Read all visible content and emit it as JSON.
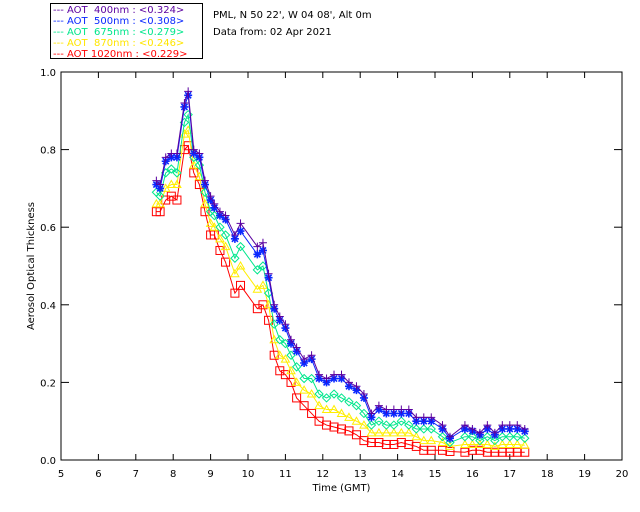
{
  "chart_data": {
    "type": "scatter",
    "title": "",
    "xlabel": "Time (GMT)",
    "ylabel": "Aerosol Optical Thickness",
    "xlim": [
      5,
      20
    ],
    "ylim": [
      0,
      1.0
    ],
    "xticks": [
      "5",
      "6",
      "7",
      "8",
      "9",
      "10",
      "11",
      "12",
      "13",
      "14",
      "15",
      "16",
      "17",
      "18",
      "19",
      "20"
    ],
    "yticks": [
      "0.0",
      "0.2",
      "0.4",
      "0.6",
      "0.8",
      "1.0"
    ],
    "legend_placement": "top-left outside",
    "x": [
      7.55,
      7.65,
      7.8,
      7.95,
      8.1,
      8.3,
      8.4,
      8.55,
      8.7,
      8.85,
      9.0,
      9.1,
      9.25,
      9.4,
      9.65,
      9.8,
      10.25,
      10.4,
      10.55,
      10.7,
      10.85,
      11.0,
      11.15,
      11.3,
      11.5,
      11.7,
      11.9,
      12.1,
      12.3,
      12.5,
      12.7,
      12.9,
      13.1,
      13.3,
      13.5,
      13.7,
      13.9,
      14.1,
      14.3,
      14.5,
      14.7,
      14.9,
      15.2,
      15.4,
      15.8,
      16.0,
      16.2,
      16.4,
      16.6,
      16.8,
      17.0,
      17.2,
      17.4
    ],
    "series": [
      {
        "name": "AOT  400nm",
        "mean": "<0.324>",
        "color": "#5a00a0",
        "marker": "plus",
        "values": [
          0.72,
          0.71,
          0.78,
          0.79,
          0.79,
          0.92,
          0.95,
          0.8,
          0.79,
          0.72,
          0.68,
          0.66,
          0.64,
          0.63,
          0.58,
          0.61,
          0.55,
          0.56,
          0.48,
          0.4,
          0.37,
          0.35,
          0.31,
          0.29,
          0.26,
          0.27,
          0.22,
          0.21,
          0.22,
          0.22,
          0.2,
          0.19,
          0.17,
          0.12,
          0.14,
          0.13,
          0.13,
          0.13,
          0.13,
          0.11,
          0.11,
          0.11,
          0.09,
          0.06,
          0.09,
          0.08,
          0.07,
          0.09,
          0.07,
          0.09,
          0.09,
          0.09,
          0.08
        ]
      },
      {
        "name": "AOT  500nm",
        "mean": "<0.308>",
        "color": "#0a28ff",
        "marker": "asterisk",
        "values": [
          0.71,
          0.7,
          0.77,
          0.78,
          0.78,
          0.91,
          0.94,
          0.79,
          0.78,
          0.71,
          0.67,
          0.65,
          0.63,
          0.62,
          0.57,
          0.59,
          0.53,
          0.54,
          0.47,
          0.39,
          0.36,
          0.34,
          0.3,
          0.28,
          0.25,
          0.26,
          0.21,
          0.2,
          0.21,
          0.21,
          0.19,
          0.18,
          0.16,
          0.11,
          0.13,
          0.12,
          0.12,
          0.12,
          0.12,
          0.1,
          0.1,
          0.1,
          0.08,
          0.056,
          0.08,
          0.075,
          0.065,
          0.08,
          0.065,
          0.08,
          0.08,
          0.08,
          0.074
        ]
      },
      {
        "name": "AOT  675nm",
        "mean": "<0.279>",
        "color": "#00e68c",
        "marker": "diamond",
        "values": [
          0.69,
          0.68,
          0.74,
          0.75,
          0.74,
          0.87,
          0.89,
          0.78,
          0.76,
          0.69,
          0.64,
          0.63,
          0.6,
          0.58,
          0.52,
          0.55,
          0.49,
          0.5,
          0.43,
          0.35,
          0.31,
          0.3,
          0.27,
          0.24,
          0.21,
          0.21,
          0.17,
          0.16,
          0.17,
          0.16,
          0.15,
          0.14,
          0.12,
          0.09,
          0.1,
          0.09,
          0.09,
          0.1,
          0.09,
          0.08,
          0.08,
          0.08,
          0.06,
          0.045,
          0.06,
          0.06,
          0.05,
          0.06,
          0.05,
          0.06,
          0.06,
          0.06,
          0.056
        ]
      },
      {
        "name": "AOT  870nm",
        "mean": "<0.246>",
        "color": "#ffee00",
        "marker": "triangle",
        "values": [
          0.66,
          0.66,
          0.7,
          0.71,
          0.71,
          0.84,
          0.85,
          0.76,
          0.73,
          0.66,
          0.61,
          0.6,
          0.57,
          0.55,
          0.48,
          0.5,
          0.44,
          0.45,
          0.4,
          0.31,
          0.27,
          0.26,
          0.23,
          0.2,
          0.18,
          0.17,
          0.14,
          0.13,
          0.13,
          0.12,
          0.11,
          0.1,
          0.09,
          0.07,
          0.07,
          0.07,
          0.07,
          0.07,
          0.07,
          0.06,
          0.05,
          0.05,
          0.045,
          0.035,
          0.04,
          0.04,
          0.04,
          0.04,
          0.035,
          0.04,
          0.04,
          0.04,
          0.038
        ]
      },
      {
        "name": "AOT 1020nm",
        "mean": "<0.229>",
        "color": "#ff0000",
        "marker": "square",
        "values": [
          0.64,
          0.64,
          0.67,
          0.68,
          0.67,
          0.8,
          0.81,
          0.74,
          0.71,
          0.64,
          0.58,
          0.58,
          0.54,
          0.51,
          0.43,
          0.45,
          0.39,
          0.4,
          0.36,
          0.27,
          0.23,
          0.22,
          0.2,
          0.16,
          0.14,
          0.12,
          0.1,
          0.09,
          0.085,
          0.08,
          0.075,
          0.065,
          0.05,
          0.045,
          0.045,
          0.04,
          0.04,
          0.045,
          0.04,
          0.035,
          0.025,
          0.025,
          0.025,
          0.022,
          0.02,
          0.025,
          0.025,
          0.02,
          0.02,
          0.02,
          0.02,
          0.02,
          0.02
        ]
      }
    ]
  },
  "info": {
    "location": "PML, N 50 22', W 04 08', Alt 0m",
    "date": "Data from: 02 Apr 2021"
  }
}
